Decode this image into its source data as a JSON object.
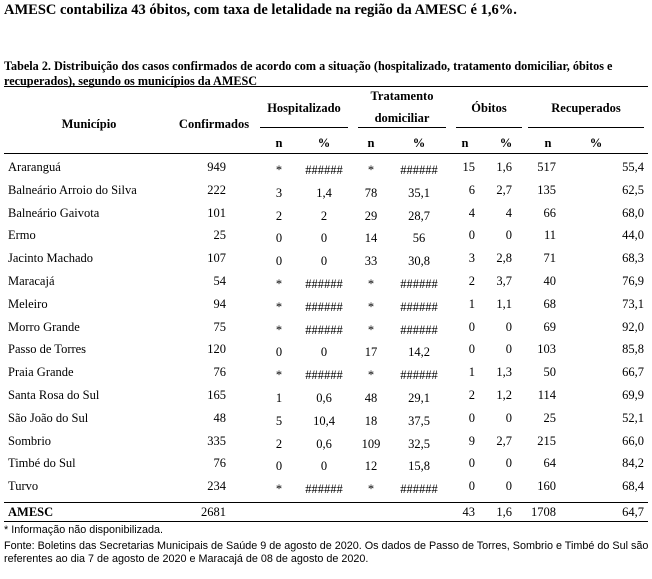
{
  "heading": "AMESC contabiliza 43 óbitos, com taxa de letalidade na região da AMESC é 1,6%.",
  "caption": "Tabela 2. Distribuição dos casos confirmados de acordo com a situação (hospitalizado, tratamento domiciliar, óbitos e recuperados), segundo os municípios da AMESC",
  "headers": {
    "municipio": "Município",
    "confirmados": "Confirmados",
    "hospitalizado": "Hospitalizado",
    "tratamento_1": "Tratamento",
    "tratamento_2": "domiciliar",
    "obitos": "Óbitos",
    "recuperados": "Recuperados",
    "n": "n",
    "pct": "%"
  },
  "rows": [
    [
      "Araranguá",
      "949",
      "*",
      "######",
      "*",
      "######",
      "15",
      "1,6",
      "517",
      "55,4"
    ],
    [
      "Balneário Arroio do Silva",
      "222",
      "3",
      "1,4",
      "78",
      "35,1",
      "6",
      "2,7",
      "135",
      "62,5"
    ],
    [
      "Balneário Gaivota",
      "101",
      "2",
      "2",
      "29",
      "28,7",
      "4",
      "4",
      "66",
      "68,0"
    ],
    [
      "Ermo",
      "25",
      "0",
      "0",
      "14",
      "56",
      "0",
      "0",
      "11",
      "44,0"
    ],
    [
      "Jacinto Machado",
      "107",
      "0",
      "0",
      "33",
      "30,8",
      "3",
      "2,8",
      "71",
      "68,3"
    ],
    [
      "Maracajá",
      "54",
      "*",
      "######",
      "*",
      "######",
      "2",
      "3,7",
      "40",
      "76,9"
    ],
    [
      "Meleiro",
      "94",
      "*",
      "######",
      "*",
      "######",
      "1",
      "1,1",
      "68",
      "73,1"
    ],
    [
      "Morro Grande",
      "75",
      "*",
      "######",
      "*",
      "######",
      "0",
      "0",
      "69",
      "92,0"
    ],
    [
      "Passo de Torres",
      "120",
      "0",
      "0",
      "17",
      "14,2",
      "0",
      "0",
      "103",
      "85,8"
    ],
    [
      "Praia Grande",
      "76",
      "*",
      "######",
      "*",
      "######",
      "1",
      "1,3",
      "50",
      "66,7"
    ],
    [
      "Santa Rosa do Sul",
      "165",
      "1",
      "0,6",
      "48",
      "29,1",
      "2",
      "1,2",
      "114",
      "69,9"
    ],
    [
      "São João do Sul",
      "48",
      "5",
      "10,4",
      "18",
      "37,5",
      "0",
      "0",
      "25",
      "52,1"
    ],
    [
      "Sombrio",
      "335",
      "2",
      "0,6",
      "109",
      "32,5",
      "9",
      "2,7",
      "215",
      "66,0"
    ],
    [
      "Timbé do Sul",
      "76",
      "0",
      "0",
      "12",
      "15,8",
      "0",
      "0",
      "64",
      "84,2"
    ],
    [
      "Turvo",
      "234",
      "*",
      "######",
      "*",
      "######",
      "0",
      "0",
      "160",
      "68,4"
    ]
  ],
  "total": [
    "AMESC",
    "2681",
    "",
    "",
    "",
    "",
    "43",
    "1,6",
    "1708",
    "64,7"
  ],
  "footnote": "* Informação não disponibilizada.",
  "source": "Fonte: Boletins das Secretarias Municipais de Saúde 9 de agosto de 2020. Os dados de Passo de Torres, Sombrio e Timbé do Sul são referentes ao dia 7 de agosto de 2020 e Maracajá de 08 de agosto de 2020."
}
